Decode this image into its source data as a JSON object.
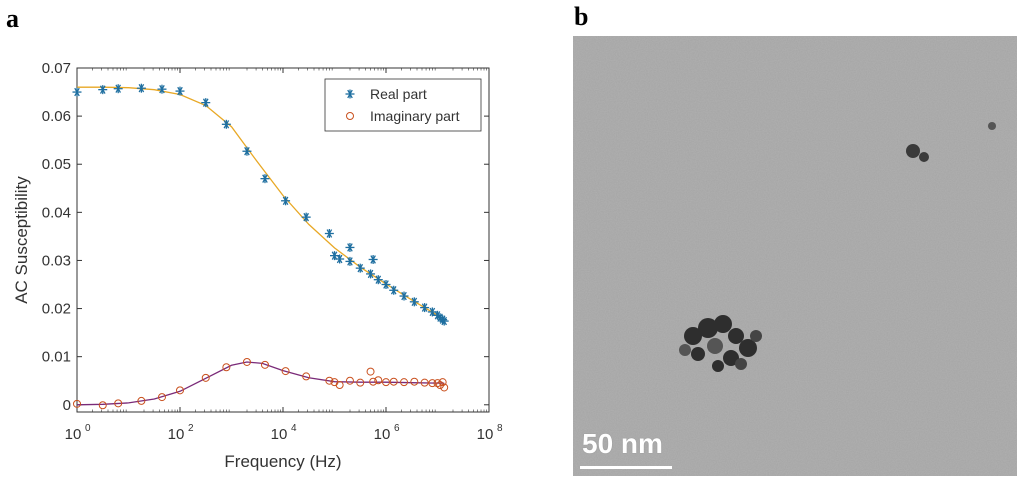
{
  "panels": {
    "a": "a",
    "b": "b"
  },
  "chart_data": {
    "type": "scatter",
    "xscale": "log",
    "xlabel": "Frequency (Hz)",
    "ylabel": "AC Susceptibility",
    "xlim_exp": [
      0,
      8
    ],
    "ylim": [
      -0.0015,
      0.07
    ],
    "xticks": [
      {
        "base": "10",
        "exp": "0"
      },
      {
        "base": "10",
        "exp": "2"
      },
      {
        "base": "10",
        "exp": "4"
      },
      {
        "base": "10",
        "exp": "6"
      },
      {
        "base": "10",
        "exp": "8"
      }
    ],
    "yticks": [
      "0",
      "0.01",
      "0.02",
      "0.03",
      "0.04",
      "0.05",
      "0.06",
      "0.07"
    ],
    "ytick_values": [
      0,
      0.01,
      0.02,
      0.03,
      0.04,
      0.05,
      0.06,
      0.07
    ],
    "legend": {
      "position": "top-right",
      "entries": [
        "Real part",
        "Imaginary part"
      ]
    },
    "series": [
      {
        "name": "Real part",
        "marker": "asterisk",
        "color": "#1f6fa0",
        "log10_x": [
          0.0,
          0.5,
          0.8,
          1.25,
          1.65,
          2.0,
          2.5,
          2.9,
          3.3,
          3.65,
          4.05,
          4.45,
          4.9,
          5.0,
          5.3,
          5.1,
          5.3,
          5.5,
          5.75,
          5.7,
          5.85,
          6.0,
          6.15,
          6.35,
          6.55,
          6.75,
          6.9,
          7.0,
          7.05,
          7.1,
          7.13
        ],
        "values": [
          0.065,
          0.0655,
          0.0657,
          0.0658,
          0.0656,
          0.0652,
          0.0628,
          0.0583,
          0.0527,
          0.047,
          0.0424,
          0.039,
          0.0356,
          0.031,
          0.0327,
          0.0303,
          0.0298,
          0.0284,
          0.0302,
          0.0272,
          0.026,
          0.025,
          0.0238,
          0.0226,
          0.0214,
          0.0202,
          0.0193,
          0.0186,
          0.0181,
          0.0177,
          0.0174
        ]
      },
      {
        "name": "Imaginary part",
        "marker": "circle",
        "color": "#c9501e",
        "log10_x": [
          0.0,
          0.5,
          0.8,
          1.25,
          1.65,
          2.0,
          2.5,
          2.9,
          3.3,
          3.65,
          4.05,
          4.45,
          4.9,
          5.0,
          5.1,
          5.3,
          5.5,
          5.7,
          5.75,
          5.85,
          6.0,
          6.15,
          6.35,
          6.55,
          6.75,
          6.9,
          7.0,
          7.05,
          7.1,
          7.13
        ],
        "values": [
          0.0002,
          -0.0001,
          0.0003,
          0.0008,
          0.0016,
          0.003,
          0.0056,
          0.0078,
          0.0089,
          0.0083,
          0.007,
          0.0059,
          0.005,
          0.0047,
          0.0041,
          0.005,
          0.0046,
          0.0069,
          0.0048,
          0.0051,
          0.0047,
          0.0048,
          0.0047,
          0.0048,
          0.0046,
          0.0045,
          0.0045,
          0.0041,
          0.0047,
          0.0036
        ]
      }
    ],
    "fits": [
      {
        "name": "Real part fit",
        "color": "#e8a825",
        "log10_x": [
          0.0,
          0.5,
          1.0,
          1.5,
          2.0,
          2.5,
          3.0,
          3.5,
          4.0,
          4.5,
          5.0,
          5.5,
          6.0,
          6.5,
          7.0,
          7.13
        ],
        "values": [
          0.066,
          0.066,
          0.0659,
          0.0655,
          0.0645,
          0.0622,
          0.0578,
          0.0505,
          0.0435,
          0.0375,
          0.0326,
          0.0286,
          0.0251,
          0.0218,
          0.0186,
          0.0178
        ]
      },
      {
        "name": "Imaginary part fit",
        "color": "#7a2a78",
        "log10_x": [
          0.0,
          0.5,
          1.0,
          1.5,
          2.0,
          2.5,
          3.0,
          3.3,
          3.6,
          4.0,
          4.5,
          5.0,
          5.5,
          6.0,
          6.5,
          7.0,
          7.13
        ],
        "values": [
          0.0,
          0.0001,
          0.0004,
          0.0012,
          0.0028,
          0.0055,
          0.0082,
          0.0089,
          0.0086,
          0.0071,
          0.0056,
          0.0048,
          0.0047,
          0.0047,
          0.0046,
          0.0045,
          0.0045
        ]
      }
    ]
  },
  "image_b": {
    "description_label": "TEM micrograph",
    "scale_bar_label": "50 nm",
    "background_color": "#a4a4a4"
  }
}
